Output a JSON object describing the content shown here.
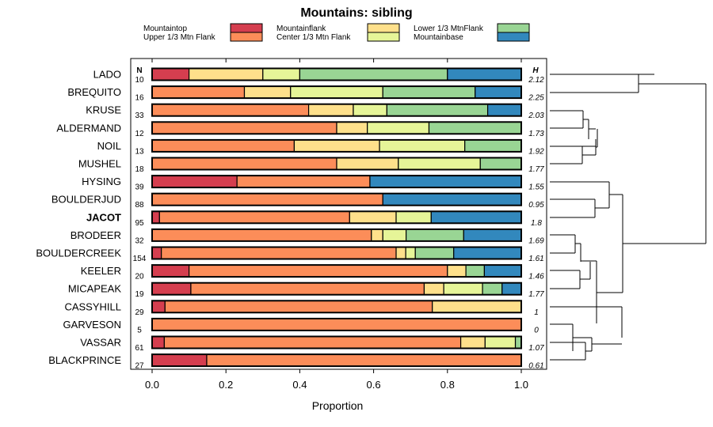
{
  "chart_data": {
    "type": "bar",
    "stacked": true,
    "orientation": "horizontal",
    "title": "Mountains: sibling",
    "xlabel": "Proportion",
    "xlim": [
      0,
      1
    ],
    "xticks": [
      "0.0",
      "0.2",
      "0.4",
      "0.6",
      "0.8",
      "1.0"
    ],
    "n_header": "N",
    "h_header": "H",
    "highlight": "JACOT",
    "legend": [
      {
        "name": "Mountaintop",
        "color": "#d53e4f"
      },
      {
        "name": "Upper 1/3 Mtn Flank",
        "color": "#fc8d59"
      },
      {
        "name": "Mountainflank",
        "color": "#fee08b"
      },
      {
        "name": "Center 1/3 Mtn Flank",
        "color": "#e6f598"
      },
      {
        "name": "Lower 1/3 MtnFlank",
        "color": "#99d594"
      },
      {
        "name": "Mountainbase",
        "color": "#3288bd"
      }
    ],
    "categories": [
      "LADO",
      "BREQUITO",
      "KRUSE",
      "ALDERMAND",
      "NOIL",
      "MUSHEL",
      "HYSING",
      "BOULDERJUD",
      "JACOT",
      "BRODEER",
      "BOULDERCREEK",
      "KEELER",
      "MICAPEAK",
      "CASSYHILL",
      "GARVESON",
      "VASSAR",
      "BLACKPRINCE"
    ],
    "n": [
      "10",
      "16",
      "33",
      "12",
      "13",
      "18",
      "39",
      "88",
      "95",
      "32",
      "154",
      "20",
      "19",
      "29",
      "5",
      "61",
      "27"
    ],
    "h": [
      "2.12",
      "2.25",
      "2.03",
      "1.73",
      "1.92",
      "1.77",
      "1.55",
      "0.95",
      "1.8",
      "1.69",
      "1.61",
      "1.46",
      "1.77",
      "1",
      "0",
      "1.07",
      "0.61"
    ],
    "series": [
      {
        "name": "Mountaintop",
        "values": [
          0.1,
          0,
          0,
          0,
          0,
          0,
          0.23,
          0,
          0.02,
          0,
          0.025,
          0.1,
          0.105,
          0.035,
          0,
          0.033,
          0.148
        ]
      },
      {
        "name": "Upper 1/3 Mtn Flank",
        "values": [
          0,
          0.25,
          0.424,
          0.5,
          0.385,
          0.5,
          0.36,
          0.625,
          0.515,
          0.594,
          0.636,
          0.7,
          0.632,
          0.724,
          1.0,
          0.803,
          0.852
        ]
      },
      {
        "name": "Mountainflank",
        "values": [
          0.2,
          0.125,
          0.121,
          0.083,
          0.231,
          0.167,
          0,
          0,
          0.126,
          0.031,
          0.026,
          0.05,
          0.053,
          0.241,
          0,
          0.066,
          0
        ]
      },
      {
        "name": "Center 1/3 Mtn Flank",
        "values": [
          0.1,
          0.25,
          0.091,
          0.167,
          0.231,
          0.222,
          0,
          0,
          0.095,
          0.063,
          0.026,
          0,
          0.105,
          0,
          0,
          0.082,
          0
        ]
      },
      {
        "name": "Lower 1/3 MtnFlank",
        "values": [
          0.4,
          0.25,
          0.273,
          0.25,
          0.153,
          0.111,
          0,
          0,
          0,
          0.156,
          0.104,
          0.05,
          0.053,
          0,
          0,
          0.016,
          0
        ]
      },
      {
        "name": "Mountainbase",
        "values": [
          0.2,
          0.125,
          0.091,
          0,
          0,
          0,
          0.41,
          0.375,
          0.244,
          0.156,
          0.183,
          0.1,
          0.052,
          0,
          0,
          0,
          0
        ]
      }
    ]
  }
}
